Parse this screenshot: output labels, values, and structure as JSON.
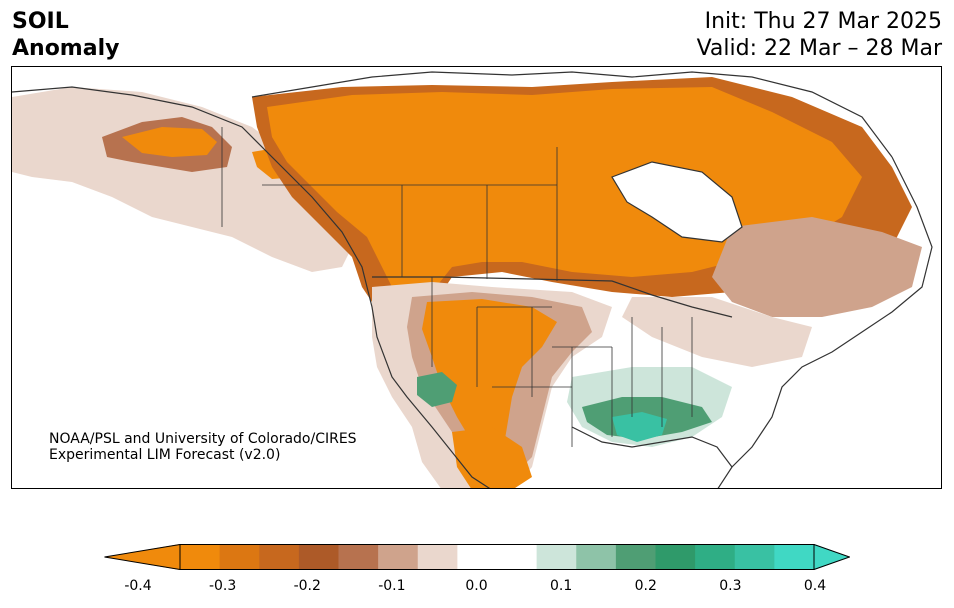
{
  "header": {
    "title_line1": "SOIL",
    "title_line2": "Anomaly",
    "init": "Init: Thu 27 Mar 2025",
    "valid": "Valid: 22 Mar – 28 Mar"
  },
  "credit": {
    "line1": "NOAA/PSL and University of Colorado/CIRES",
    "line2": "Experimental LIM Forecast (v2.0)"
  },
  "colorbar": {
    "ticks": [
      "-0.4",
      "-0.3",
      "-0.2",
      "-0.1",
      "0.0",
      "0.1",
      "0.2",
      "0.3",
      "0.4"
    ],
    "colors": [
      "#f08a0c",
      "#dc7712",
      "#c7681e",
      "#ad5a28",
      "#b7724f",
      "#cfa38c",
      "#ead7cd",
      "#ffffff",
      "#ffffff",
      "#cde5da",
      "#8ec3a8",
      "#4f9e74",
      "#2f9a6a",
      "#2fae85",
      "#39c1a3",
      "#40d8c4"
    ],
    "extend_low_color": "#f08a0c",
    "extend_high_color": "#40d8c4"
  },
  "map": {
    "region": "North America",
    "palette": {
      "dry_strong": "#f08a0c",
      "dry_mid": "#c7681e",
      "dry_weak": "#cfa38c",
      "dry_faint": "#ead7cd",
      "wet_faint": "#cde5da",
      "wet_mid": "#4f9e74",
      "wet_strong": "#2fae85",
      "outline": "#333333"
    }
  }
}
